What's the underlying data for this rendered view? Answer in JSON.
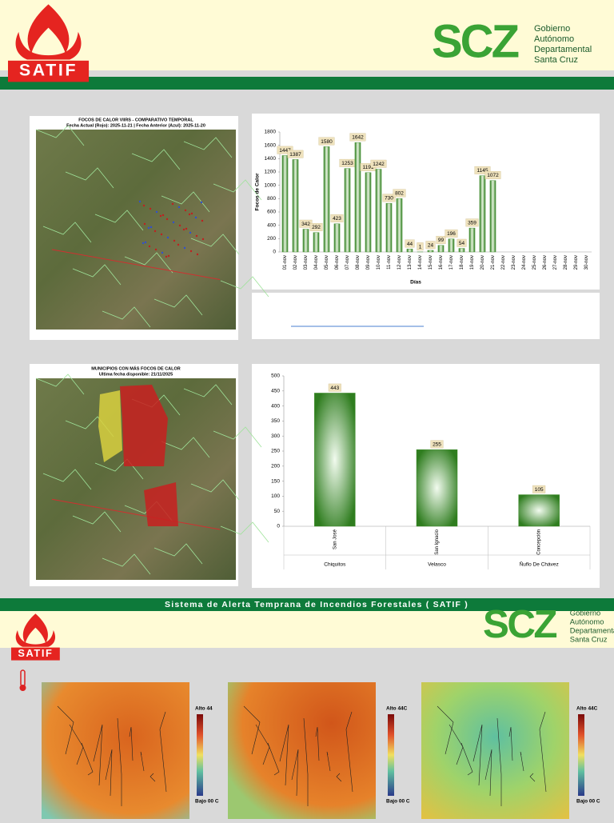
{
  "header": {
    "logo_text": "SATIF",
    "brand": "SCZ",
    "org_lines": [
      "Gobierno",
      "Autónomo",
      "Departamental",
      "Santa Cruz"
    ]
  },
  "maps": [
    {
      "title": "FOCOS DE CALOR VIIRS - COMPARATIVO TEMPORAL",
      "subtitle": "Fecha Actual (Rojo): 2025-11-21 | Fecha Anterior (Azul): 2025-11-20"
    },
    {
      "title": "MUNICIPIOS CON MÁS FOCOS DE CALOR",
      "subtitle": "Ultima fecha disponible: 21/11/2025"
    }
  ],
  "banner": "Sistema de Alerta Temprana de Incendios Forestales ( SATIF )",
  "temperature_maps": [
    {
      "high": "Alto 44",
      "low": "Bajo 00 C"
    },
    {
      "high": "Alto 44C",
      "low": "Bajo 00 C"
    },
    {
      "high": "Alto 44C",
      "low": "Bajo 00 C"
    }
  ],
  "chart_data": [
    {
      "type": "bar",
      "x_label": "Días",
      "y_label": "Focos de Calor",
      "color": "#3f8f2a",
      "categories": [
        "01-nov",
        "02-nov",
        "03-nov",
        "04-nov",
        "05-nov",
        "06-nov",
        "07-nov",
        "08-nov",
        "09-nov",
        "10-nov",
        "11-nov",
        "12-nov",
        "13-nov",
        "14-nov",
        "15-nov",
        "16-nov",
        "17-nov",
        "18-nov",
        "19-nov",
        "20-nov",
        "21-nov",
        "22-nov",
        "23-nov",
        "24-nov",
        "25-nov",
        "26-nov",
        "27-nov",
        "28-nov",
        "29-nov",
        "30-nov"
      ],
      "values": [
        1447,
        1387,
        342,
        292,
        1580,
        423,
        1253,
        1642,
        1191,
        1242,
        730,
        802,
        44,
        1,
        24,
        99,
        196,
        54,
        359,
        1145,
        1072,
        null,
        null,
        null,
        null,
        null,
        null,
        null,
        null,
        null
      ],
      "ylim": [
        0,
        1800
      ],
      "yticks": [
        0,
        200,
        400,
        600,
        800,
        1000,
        1200,
        1400,
        1600,
        1800
      ]
    },
    {
      "type": "bar",
      "color": "#3f8f2a",
      "categories": [
        "San José",
        "San Ignacio",
        "Concepción"
      ],
      "groups": [
        "Chiquitos",
        "Velasco",
        "Ñuflo De Chávez"
      ],
      "values": [
        443,
        255,
        105
      ],
      "ylim": [
        0,
        500
      ],
      "yticks": [
        0,
        50,
        100,
        150,
        200,
        250,
        300,
        350,
        400,
        450,
        500
      ]
    }
  ]
}
